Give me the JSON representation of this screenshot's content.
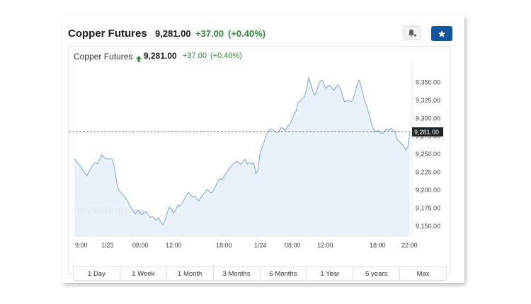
{
  "header": {
    "title": "Copper Futures",
    "price": "9,281.00",
    "change": "+37.00",
    "change_pct": "(+0.40%)"
  },
  "subheader": {
    "title": "Copper Futures",
    "price": "9,281.00",
    "change": "+37.00",
    "change_pct": "(+0.40%)"
  },
  "colors": {
    "positive": "#2e8a3e",
    "line": "#7fa6cf",
    "fill": "#e7eef7",
    "star_button": "#1256a0"
  },
  "icons": {
    "alert": "bell-plus-icon",
    "watchlist": "star-icon"
  },
  "watermark": {
    "brand": "Investing",
    "suffix": ".com"
  },
  "time_ranges": [
    "1 Day",
    "1 Week",
    "1 Month",
    "3 Months",
    "6 Months",
    "1 Year",
    "5 years",
    "Max"
  ],
  "chart_data": {
    "type": "area",
    "title": "Copper Futures",
    "x_ticks": [
      "9:00",
      "1/23",
      "08:00",
      "12:00",
      "18:00",
      "1/24",
      "08:00",
      "12:00",
      "18:00",
      "22:00"
    ],
    "y_ticks": [
      "9,350.00",
      "9,325.00",
      "9,300.00",
      "9,275.00",
      "9,250.00",
      "9,225.00",
      "9,200.00",
      "9,175.00",
      "9,150.00"
    ],
    "ylim": [
      9135,
      9380
    ],
    "last_price_label": "9,281.00",
    "last_price": 9281,
    "series": [
      {
        "values": [
          9244,
          9240,
          9236,
          9233,
          9228,
          9224,
          9220,
          9226,
          9232,
          9236,
          9238,
          9237,
          9243,
          9249,
          9246,
          9244,
          9243,
          9244,
          9243,
          9232,
          9212,
          9200,
          9197,
          9194,
          9190,
          9186,
          9180,
          9175,
          9170,
          9167,
          9172,
          9170,
          9166,
          9168,
          9170,
          9166,
          9162,
          9163,
          9160,
          9158,
          9162,
          9155,
          9152,
          9158,
          9169,
          9176,
          9174,
          9168,
          9173,
          9179,
          9178,
          9181,
          9187,
          9192,
          9197,
          9194,
          9190,
          9192,
          9188,
          9185,
          9190,
          9194,
          9197,
          9201,
          9198,
          9196,
          9200,
          9206,
          9212,
          9216,
          9214,
          9220,
          9224,
          9228,
          9232,
          9236,
          9238,
          9240,
          9238,
          9236,
          9240,
          9243,
          9236,
          9239,
          9236,
          9238,
          9223,
          9228,
          9252,
          9260,
          9268,
          9278,
          9282,
          9285,
          9284,
          9281,
          9280,
          9282,
          9287,
          9286,
          9283,
          9289,
          9291,
          9298,
          9305,
          9310,
          9322,
          9324,
          9328,
          9330,
          9340,
          9356,
          9348,
          9338,
          9332,
          9340,
          9349,
          9353,
          9350,
          9342,
          9344,
          9346,
          9342,
          9339,
          9344,
          9347,
          9341,
          9332,
          9323,
          9324,
          9325,
          9323,
          9326,
          9335,
          9348,
          9353,
          9343,
          9330,
          9321,
          9312,
          9302,
          9290,
          9284,
          9281,
          9283,
          9280,
          9279,
          9282,
          9285,
          9283,
          9286,
          9284,
          9281,
          9270,
          9268,
          9265,
          9262,
          9256,
          9260,
          9281
        ]
      }
    ]
  }
}
